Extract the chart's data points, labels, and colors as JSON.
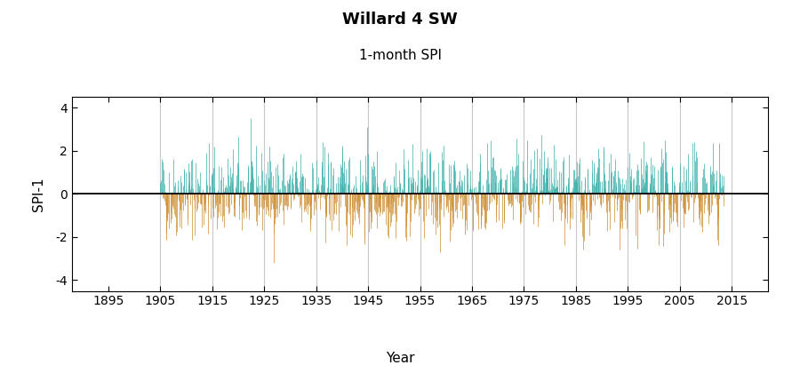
{
  "title": "Willard 4 SW",
  "subtitle": "1-month SPI",
  "ylabel": "SPI-1",
  "xlabel": "Year",
  "start_year": 1905,
  "end_year": 2013.5,
  "xlim": [
    1888,
    2022
  ],
  "ylim": [
    -4.5,
    4.5
  ],
  "yticks": [
    -4,
    -2,
    0,
    2,
    4
  ],
  "xticks": [
    1895,
    1905,
    1915,
    1925,
    1935,
    1945,
    1955,
    1965,
    1975,
    1985,
    1995,
    2005,
    2015
  ],
  "color_positive": "#3aafa9",
  "color_negative": "#cd8c2e",
  "background_color": "#ffffff",
  "grid_color": "#c8c8c8",
  "title_fontsize": 13,
  "subtitle_fontsize": 11,
  "label_fontsize": 11,
  "tick_fontsize": 10,
  "seed": 42,
  "n_months": 1302
}
